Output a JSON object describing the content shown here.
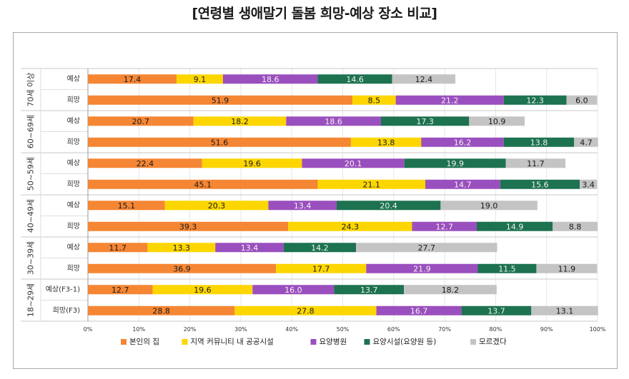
{
  "chart_data": {
    "type": "bar",
    "orientation": "horizontal",
    "stacked": true,
    "title": "[연령별 생애말기 돌봄 희망-예상 장소 비교]",
    "xlim": [
      0,
      100
    ],
    "x_ticks": [
      "0%",
      "10%",
      "20%",
      "30%",
      "40%",
      "50%",
      "60%",
      "70%",
      "80%",
      "90%",
      "100%"
    ],
    "legend_position": "bottom",
    "series": [
      {
        "name": "본인의 집",
        "color": "#f58634"
      },
      {
        "name": "지역 커뮤니티 내 공공시설",
        "color": "#fdd600"
      },
      {
        "name": "요양병원",
        "color": "#9a4fbe"
      },
      {
        "name": "요양시설(요양원 등)",
        "color": "#1d7250"
      },
      {
        "name": "모르겠다",
        "color": "#c4c4c4"
      }
    ],
    "groups": [
      {
        "label": "70세 이상",
        "rows": [
          {
            "label": "예상",
            "values": [
              17.4,
              9.1,
              18.6,
              14.6,
              12.4
            ]
          },
          {
            "label": "희망",
            "values": [
              51.9,
              8.5,
              21.2,
              12.3,
              6.0
            ]
          }
        ]
      },
      {
        "label": "60~69세",
        "rows": [
          {
            "label": "예상",
            "values": [
              20.7,
              18.2,
              18.6,
              17.3,
              10.9
            ]
          },
          {
            "label": "희망",
            "values": [
              51.6,
              13.8,
              16.2,
              13.8,
              4.7
            ]
          }
        ]
      },
      {
        "label": "50~59세",
        "rows": [
          {
            "label": "예상",
            "values": [
              22.4,
              19.6,
              20.1,
              19.9,
              11.7
            ]
          },
          {
            "label": "희망",
            "values": [
              45.1,
              21.1,
              14.7,
              15.6,
              3.4
            ]
          }
        ]
      },
      {
        "label": "40~49세",
        "rows": [
          {
            "label": "예상",
            "values": [
              15.1,
              20.3,
              13.4,
              20.4,
              19.0
            ]
          },
          {
            "label": "희망",
            "values": [
              39.3,
              24.3,
              12.7,
              14.9,
              8.8
            ]
          }
        ]
      },
      {
        "label": "30~39세",
        "rows": [
          {
            "label": "예상",
            "values": [
              11.7,
              13.3,
              13.4,
              14.2,
              27.7
            ]
          },
          {
            "label": "희망",
            "values": [
              36.9,
              17.7,
              21.9,
              11.5,
              11.9
            ]
          }
        ]
      },
      {
        "label": "18~29세",
        "rows": [
          {
            "label": "예상(F3-1)",
            "values": [
              12.7,
              19.6,
              16.0,
              13.7,
              18.2
            ]
          },
          {
            "label": "희망(F3)",
            "values": [
              28.8,
              27.8,
              16.7,
              13.7,
              13.1
            ]
          }
        ]
      }
    ]
  }
}
